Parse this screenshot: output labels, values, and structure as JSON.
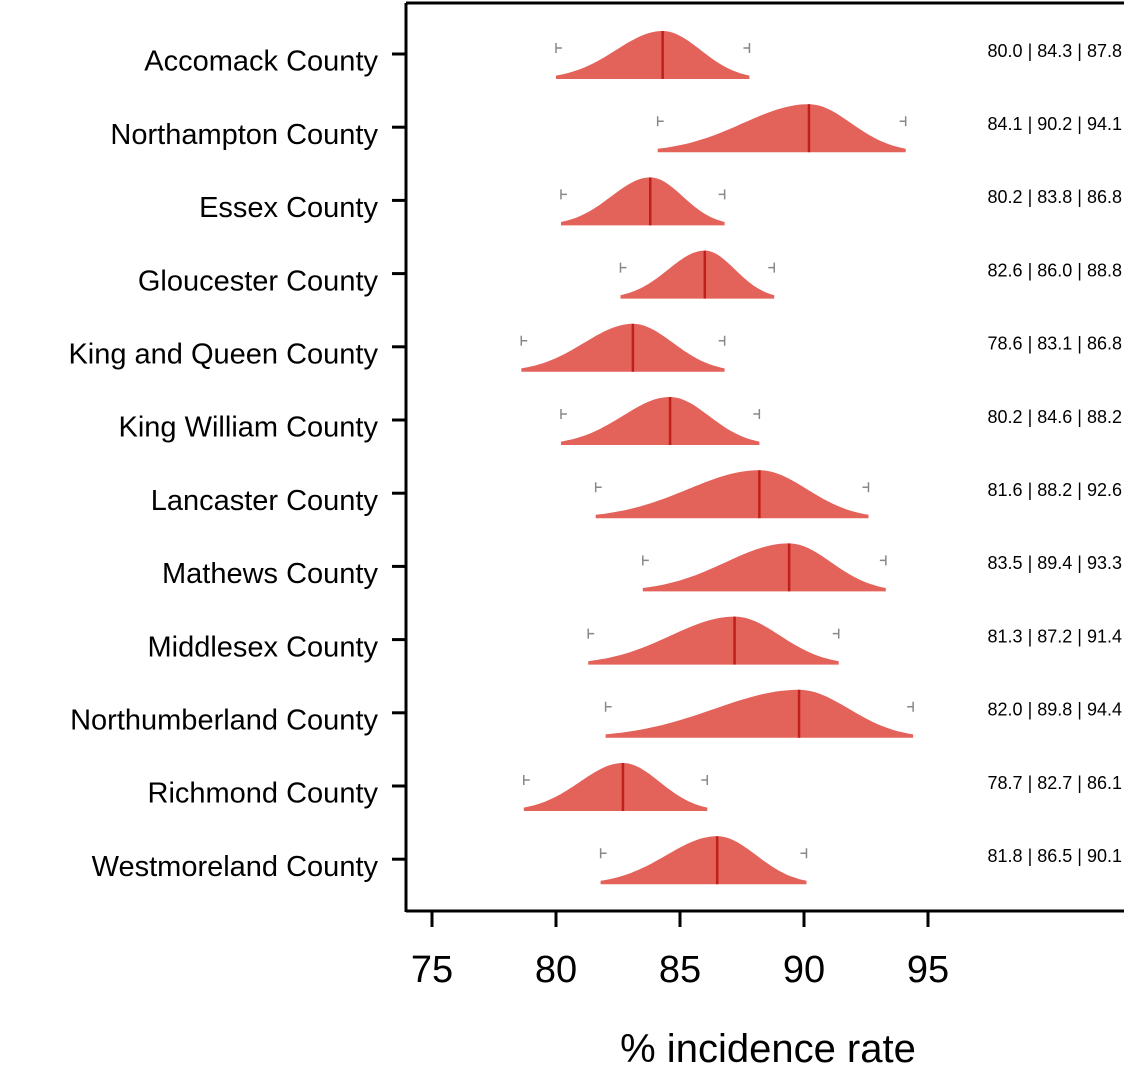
{
  "chart_data": {
    "type": "ridgeline",
    "xlabel": "% incidence rate",
    "xlim": [
      73.9,
      102.9
    ],
    "xticks": [
      "75",
      "80",
      "85",
      "90",
      "95"
    ],
    "colors": {
      "fill": "#e3625a",
      "median": "#c0201a",
      "whisker": "#888888"
    },
    "rows": [
      {
        "name": "Accomack County",
        "low": 80.0,
        "median": 84.3,
        "high": 87.8,
        "text": "80.0 | 84.3 | 87.8"
      },
      {
        "name": "Northampton County",
        "low": 84.1,
        "median": 90.2,
        "high": 94.1,
        "text": "84.1 | 90.2 | 94.1"
      },
      {
        "name": "Essex County",
        "low": 80.2,
        "median": 83.8,
        "high": 86.8,
        "text": "80.2 | 83.8 | 86.8"
      },
      {
        "name": "Gloucester County",
        "low": 82.6,
        "median": 86.0,
        "high": 88.8,
        "text": "82.6 | 86.0 | 88.8"
      },
      {
        "name": "King and Queen County",
        "low": 78.6,
        "median": 83.1,
        "high": 86.8,
        "text": "78.6 | 83.1 | 86.8"
      },
      {
        "name": "King William County",
        "low": 80.2,
        "median": 84.6,
        "high": 88.2,
        "text": "80.2 | 84.6 | 88.2"
      },
      {
        "name": "Lancaster County",
        "low": 81.6,
        "median": 88.2,
        "high": 92.6,
        "text": "81.6 | 88.2 | 92.6"
      },
      {
        "name": "Mathews County",
        "low": 83.5,
        "median": 89.4,
        "high": 93.3,
        "text": "83.5 | 89.4 | 93.3"
      },
      {
        "name": "Middlesex County",
        "low": 81.3,
        "median": 87.2,
        "high": 91.4,
        "text": "81.3 | 87.2 | 91.4"
      },
      {
        "name": "Northumberland County",
        "low": 82.0,
        "median": 89.8,
        "high": 94.4,
        "text": "82.0 | 89.8 | 94.4"
      },
      {
        "name": "Richmond County",
        "low": 78.7,
        "median": 82.7,
        "high": 86.1,
        "text": "78.7 | 82.7 | 86.1"
      },
      {
        "name": "Westmoreland County",
        "low": 81.8,
        "median": 86.5,
        "high": 90.1,
        "text": "81.8 | 86.5 | 90.1"
      }
    ]
  }
}
